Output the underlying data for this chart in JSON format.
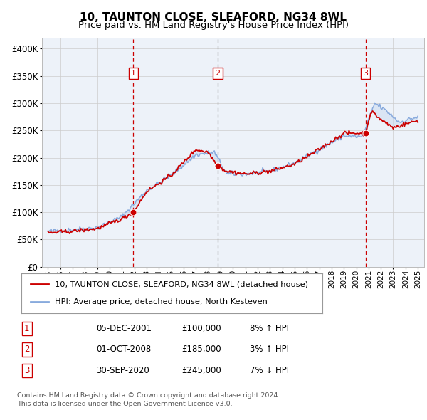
{
  "title": "10, TAUNTON CLOSE, SLEAFORD, NG34 8WL",
  "subtitle": "Price paid vs. HM Land Registry's House Price Index (HPI)",
  "title_fontsize": 11,
  "subtitle_fontsize": 9.5,
  "xlim": [
    1994.5,
    2025.5
  ],
  "ylim": [
    0,
    420000
  ],
  "yticks": [
    0,
    50000,
    100000,
    150000,
    200000,
    250000,
    300000,
    350000,
    400000
  ],
  "ytick_labels": [
    "£0",
    "£50K",
    "£100K",
    "£150K",
    "£200K",
    "£250K",
    "£300K",
    "£350K",
    "£400K"
  ],
  "xtick_years": [
    1995,
    1996,
    1997,
    1998,
    1999,
    2000,
    2001,
    2002,
    2003,
    2004,
    2005,
    2006,
    2007,
    2008,
    2009,
    2010,
    2011,
    2012,
    2013,
    2014,
    2015,
    2016,
    2017,
    2018,
    2019,
    2020,
    2021,
    2022,
    2023,
    2024,
    2025
  ],
  "sale_dates": [
    2001.92,
    2008.75,
    2020.75
  ],
  "sale_prices": [
    100000,
    185000,
    245000
  ],
  "sale_labels": [
    "1",
    "2",
    "3"
  ],
  "vline_colors": [
    "#cc0000",
    "#888888",
    "#cc0000"
  ],
  "dot_color": "#cc0000",
  "hpi_line_color": "#88aadd",
  "price_line_color": "#cc0000",
  "fill_color": "#c8daf0",
  "plot_bg_color": "#edf2f9",
  "background_color": "#ffffff",
  "grid_color": "#cccccc",
  "legend_label_red": "10, TAUNTON CLOSE, SLEAFORD, NG34 8WL (detached house)",
  "legend_label_blue": "HPI: Average price, detached house, North Kesteven",
  "table_rows": [
    {
      "num": "1",
      "date": "05-DEC-2001",
      "price": "£100,000",
      "hpi": "8% ↑ HPI"
    },
    {
      "num": "2",
      "date": "01-OCT-2008",
      "price": "£185,000",
      "hpi": "3% ↑ HPI"
    },
    {
      "num": "3",
      "date": "30-SEP-2020",
      "price": "£245,000",
      "hpi": "7% ↓ HPI"
    }
  ],
  "footer1": "Contains HM Land Registry data © Crown copyright and database right 2024.",
  "footer2": "This data is licensed under the Open Government Licence v3.0."
}
